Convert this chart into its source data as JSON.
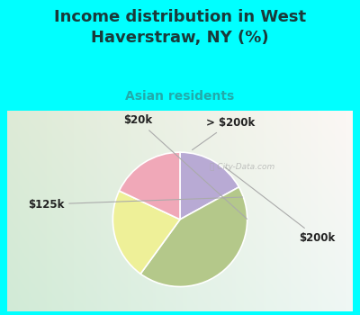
{
  "title": "Income distribution in West\nHaverstraw, NY (%)",
  "subtitle": "Asian residents",
  "slices": [
    {
      "label": "> $200k",
      "value": 17,
      "color": "#b8aad4"
    },
    {
      "label": "$200k",
      "value": 43,
      "color": "#b4c88a"
    },
    {
      "label": "$125k",
      "value": 22,
      "color": "#eef098"
    },
    {
      "label": "$20k",
      "value": 18,
      "color": "#f0a8b8"
    }
  ],
  "outer_bg": "#00FFFF",
  "box_bg_left": "#cce8d4",
  "box_bg_right": "#e8f4e8",
  "title_color": "#1a3a3a",
  "subtitle_color": "#22aaaa",
  "label_color": "#222222",
  "label_fontsize": 8.5,
  "title_fontsize": 13,
  "subtitle_fontsize": 10,
  "startangle": 90,
  "label_positions": [
    [
      0.6,
      1.15,
      "> $200k",
      "center"
    ],
    [
      1.42,
      -0.22,
      "$200k",
      "left"
    ],
    [
      -1.38,
      0.18,
      "$125k",
      "right"
    ],
    [
      -0.5,
      1.18,
      "$20k",
      "center"
    ]
  ]
}
